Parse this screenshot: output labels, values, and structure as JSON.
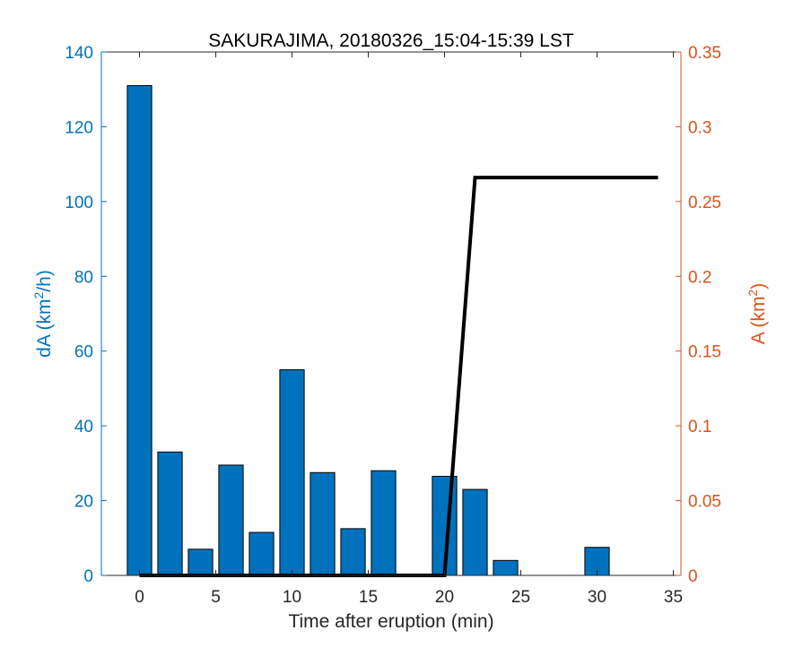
{
  "chart_data": {
    "type": "bar",
    "title": "SAKURAJIMA, 20180326_15:04-15:39 LST",
    "xlabel": "Time after eruption (min)",
    "ylabel_left": {
      "base": "dA (km",
      "sup": "2",
      "tail": "/h)"
    },
    "ylabel_right": {
      "base": "A (km",
      "sup": "2",
      "tail": ")"
    },
    "xlim": [
      -2.5,
      35.5
    ],
    "ylim_left": [
      0,
      140
    ],
    "ylim_right": [
      0,
      0.35
    ],
    "x_ticks": [
      "0",
      "5",
      "10",
      "15",
      "20",
      "25",
      "30",
      "35"
    ],
    "y_left_ticks": [
      "0",
      "20",
      "40",
      "60",
      "80",
      "100",
      "120",
      "140"
    ],
    "y_right_ticks": [
      "0",
      "0.05",
      "0.1",
      "0.15",
      "0.2",
      "0.25",
      "0.3",
      "0.35"
    ],
    "bar_series": {
      "axis": "left",
      "color": "#0072BD",
      "x": [
        0,
        2,
        4,
        6,
        8,
        10,
        12,
        14,
        16,
        18,
        20,
        22,
        24,
        26,
        28,
        30,
        32,
        34
      ],
      "values": [
        131,
        33,
        7,
        29.5,
        11.5,
        55,
        27.5,
        12.5,
        28,
        0,
        26.5,
        23,
        4,
        0,
        0,
        7.5,
        0,
        0
      ]
    },
    "line_series": {
      "axis": "right",
      "color": "#000000",
      "x": [
        0,
        2,
        4,
        6,
        8,
        10,
        12,
        14,
        16,
        18,
        20,
        22,
        24,
        26,
        28,
        30,
        32,
        34
      ],
      "values": [
        0,
        0,
        0,
        0,
        0,
        0,
        0,
        0,
        0,
        0,
        0,
        0.266,
        0.266,
        0.266,
        0.266,
        0.266,
        0.266,
        0.266
      ]
    },
    "colors": {
      "left_axis": "#0072BD",
      "right_axis": "#D95319",
      "axis": "#262626"
    },
    "grid": false
  }
}
